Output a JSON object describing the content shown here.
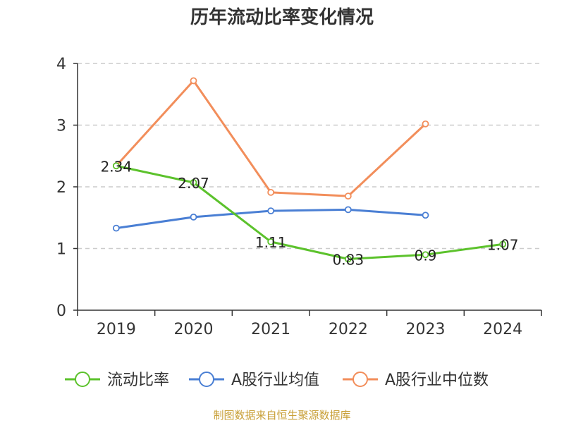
{
  "chart_data": {
    "type": "line",
    "title": "历年流动比率变化情况",
    "categories": [
      "2019",
      "2020",
      "2021",
      "2022",
      "2023",
      "2024"
    ],
    "ylim": [
      0,
      4
    ],
    "yticks": [
      "0",
      "1",
      "2",
      "3",
      "4"
    ],
    "grid": "horizontal-dashed",
    "legend_position": "bottom",
    "series": [
      {
        "name": "流动比率",
        "color": "#5cc22c",
        "values": [
          2.34,
          2.07,
          1.11,
          0.83,
          0.9,
          1.07
        ],
        "labels": [
          "2.34",
          "2.07",
          "1.11",
          "0.83",
          "0.9",
          "1.07"
        ]
      },
      {
        "name": "A股行业均值",
        "color": "#4a7fd4",
        "values": [
          1.33,
          1.51,
          1.61,
          1.63,
          1.54,
          null
        ]
      },
      {
        "name": "A股行业中位数",
        "color": "#f28e5b",
        "values": [
          2.34,
          3.72,
          1.91,
          1.85,
          3.02,
          null
        ]
      }
    ]
  },
  "source_text": "制图数据来自恒生聚源数据库"
}
